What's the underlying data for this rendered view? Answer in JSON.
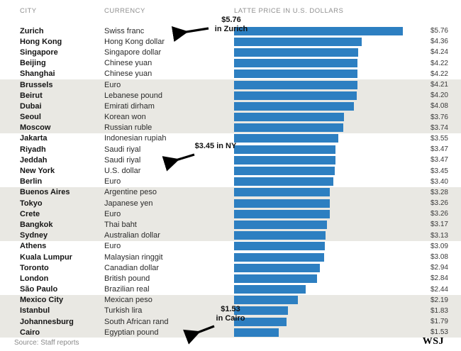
{
  "header": {
    "city": "CITY",
    "currency": "CURRENCY",
    "price": "LATTE PRICE IN U.S. DOLLARS"
  },
  "footer": {
    "source": "Source: Staff reports",
    "logo": "WSJ"
  },
  "colors": {
    "bar": "#2d7fc1",
    "band": "#e9e8e3"
  },
  "annotations": [
    {
      "line1": "$5.76",
      "line2": "in Zurich"
    },
    {
      "line1": "$3.45 in NY",
      "line2": ""
    },
    {
      "line1": "$1.53",
      "line2": "in Cairo"
    }
  ],
  "chart_data": {
    "type": "bar",
    "orientation": "horizontal",
    "title": "",
    "xlabel": "LATTE PRICE IN U.S. DOLLARS",
    "xlim": [
      0,
      5.76
    ],
    "rows": [
      {
        "city": "Zurich",
        "currency": "Swiss franc",
        "value": 5.76,
        "label": "$5.76",
        "shaded": false
      },
      {
        "city": "Hong Kong",
        "currency": "Hong Kong dollar",
        "value": 4.36,
        "label": "$4.36",
        "shaded": false
      },
      {
        "city": "Singapore",
        "currency": "Singapore dollar",
        "value": 4.24,
        "label": "$4.24",
        "shaded": false
      },
      {
        "city": "Beijing",
        "currency": "Chinese yuan",
        "value": 4.22,
        "label": "$4.22",
        "shaded": false
      },
      {
        "city": "Shanghai",
        "currency": "Chinese yuan",
        "value": 4.22,
        "label": "$4.22",
        "shaded": false
      },
      {
        "city": "Brussels",
        "currency": "Euro",
        "value": 4.21,
        "label": "$4.21",
        "shaded": true
      },
      {
        "city": "Beirut",
        "currency": "Lebanese pound",
        "value": 4.2,
        "label": "$4.20",
        "shaded": true
      },
      {
        "city": "Dubai",
        "currency": "Emirati dirham",
        "value": 4.08,
        "label": "$4.08",
        "shaded": true
      },
      {
        "city": "Seoul",
        "currency": "Korean won",
        "value": 3.76,
        "label": "$3.76",
        "shaded": true
      },
      {
        "city": "Moscow",
        "currency": "Russian ruble",
        "value": 3.74,
        "label": "$3.74",
        "shaded": true
      },
      {
        "city": "Jakarta",
        "currency": "Indonesian rupiah",
        "value": 3.55,
        "label": "$3.55",
        "shaded": false
      },
      {
        "city": "Riyadh",
        "currency": "Saudi riyal",
        "value": 3.47,
        "label": "$3.47",
        "shaded": false
      },
      {
        "city": "Jeddah",
        "currency": "Saudi riyal",
        "value": 3.47,
        "label": "$3.47",
        "shaded": false
      },
      {
        "city": "New York",
        "currency": "U.S. dollar",
        "value": 3.45,
        "label": "$3.45",
        "shaded": false
      },
      {
        "city": "Berlin",
        "currency": "Euro",
        "value": 3.4,
        "label": "$3.40",
        "shaded": false
      },
      {
        "city": "Buenos Aires",
        "currency": "Argentine peso",
        "value": 3.28,
        "label": "$3.28",
        "shaded": true
      },
      {
        "city": "Tokyo",
        "currency": "Japanese yen",
        "value": 3.26,
        "label": "$3.26",
        "shaded": true
      },
      {
        "city": "Crete",
        "currency": "Euro",
        "value": 3.26,
        "label": "$3.26",
        "shaded": true
      },
      {
        "city": "Bangkok",
        "currency": "Thai baht",
        "value": 3.17,
        "label": "$3.17",
        "shaded": true
      },
      {
        "city": "Sydney",
        "currency": "Australian dollar",
        "value": 3.13,
        "label": "$3.13",
        "shaded": true
      },
      {
        "city": "Athens",
        "currency": "Euro",
        "value": 3.09,
        "label": "$3.09",
        "shaded": false
      },
      {
        "city": "Kuala Lumpur",
        "currency": "Malaysian ringgit",
        "value": 3.08,
        "label": "$3.08",
        "shaded": false
      },
      {
        "city": "Toronto",
        "currency": "Canadian dollar",
        "value": 2.94,
        "label": "$2.94",
        "shaded": false
      },
      {
        "city": "London",
        "currency": "British pound",
        "value": 2.84,
        "label": "$2.84",
        "shaded": false
      },
      {
        "city": "São Paulo",
        "currency": "Brazilian real",
        "value": 2.44,
        "label": "$2.44",
        "shaded": false
      },
      {
        "city": "Mexico City",
        "currency": "Mexican peso",
        "value": 2.19,
        "label": "$2.19",
        "shaded": true
      },
      {
        "city": "Istanbul",
        "currency": "Turkish lira",
        "value": 1.83,
        "label": "$1.83",
        "shaded": true
      },
      {
        "city": "Johannesburg",
        "currency": "South African rand",
        "value": 1.79,
        "label": "$1.79",
        "shaded": true
      },
      {
        "city": "Cairo",
        "currency": "Egyptian pound",
        "value": 1.53,
        "label": "$1.53",
        "shaded": true
      }
    ]
  }
}
